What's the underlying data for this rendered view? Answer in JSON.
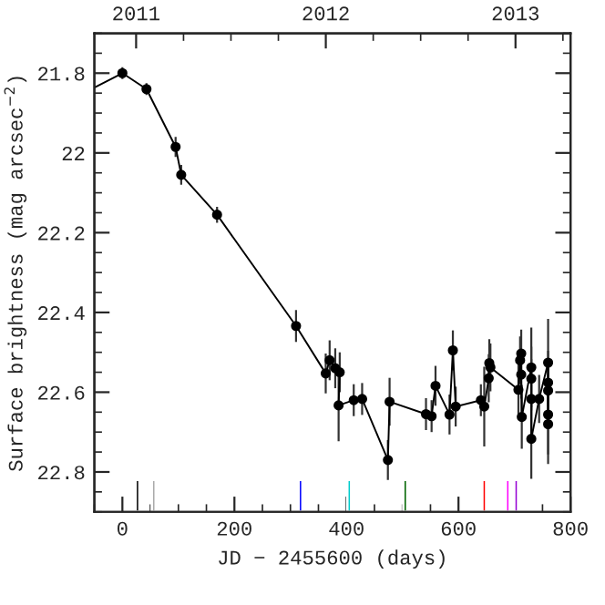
{
  "chart_data": {
    "type": "line",
    "xlabel": "JD − 2455600 (days)",
    "ylabel": "Surface brightness (mag arcsec$^{−2}$)",
    "xlim": [
      -50,
      800
    ],
    "xticks": [
      0,
      200,
      400,
      600,
      800
    ],
    "ylim": [
      22.9,
      21.7
    ],
    "yticks": [
      21.8,
      22,
      22.2,
      22.4,
      22.6,
      22.8
    ],
    "x2lim": [
      2010.78,
      2013.29
    ],
    "x2ticks": [
      2011,
      2012,
      2013
    ],
    "grid": false,
    "legend": false,
    "series": [
      {
        "color": "#000000",
        "x": [
          -50,
          0
        ],
        "values": [
          21.836,
          21.8
        ]
      },
      {
        "color": "#000000",
        "marker": "circle",
        "x": [
          0,
          43,
          95,
          105,
          169,
          310,
          363,
          370,
          380,
          388,
          386,
          413,
          428,
          474,
          477,
          542,
          552,
          559,
          584,
          590,
          595,
          640,
          646,
          654,
          655,
          657,
          707,
          710,
          712,
          712,
          713,
          730,
          730,
          730,
          730,
          744,
          760,
          760,
          760,
          760,
          760
        ],
        "values": [
          21.8,
          21.84,
          21.985,
          22.055,
          22.155,
          22.434,
          22.553,
          22.52,
          22.54,
          22.55,
          22.633,
          22.62,
          22.617,
          22.77,
          22.624,
          22.655,
          22.66,
          22.584,
          22.656,
          22.495,
          22.636,
          22.62,
          22.636,
          22.565,
          22.527,
          22.538,
          22.594,
          22.52,
          22.503,
          22.556,
          22.662,
          22.538,
          22.566,
          22.617,
          22.717,
          22.617,
          22.526,
          22.576,
          22.596,
          22.656,
          22.68
        ],
        "errors": [
          0.015,
          0.015,
          0.025,
          0.025,
          0.02,
          0.04,
          0.05,
          0.05,
          0.05,
          0.05,
          0.09,
          0.04,
          0.04,
          0.05,
          0.06,
          0.04,
          0.04,
          0.05,
          0.05,
          0.05,
          0.05,
          0.04,
          0.1,
          0.06,
          0.06,
          0.06,
          0.07,
          0.06,
          0.06,
          0.06,
          0.08,
          0.1,
          0.08,
          0.1,
          0.1,
          0.06,
          0.11,
          0.08,
          0.08,
          0.1,
          0.1
        ]
      },
      {
        "type": "bar",
        "x": [
          27,
          56,
          318,
          405,
          505,
          646,
          688,
          703
        ],
        "base": [
          22.9,
          22.9,
          22.9,
          22.9,
          22.9,
          22.9,
          22.9,
          22.9
        ],
        "values": [
          -0.08,
          -0.08,
          -0.08,
          -0.08,
          -0.08,
          -0.08,
          -0.08,
          -0.08
        ],
        "colors": [
          "#000000",
          "#aaaaaa",
          "#0000ff",
          "#00cccc",
          "#006400",
          "#ff0000",
          "#ff00ff",
          "#9400d3"
        ]
      }
    ]
  }
}
